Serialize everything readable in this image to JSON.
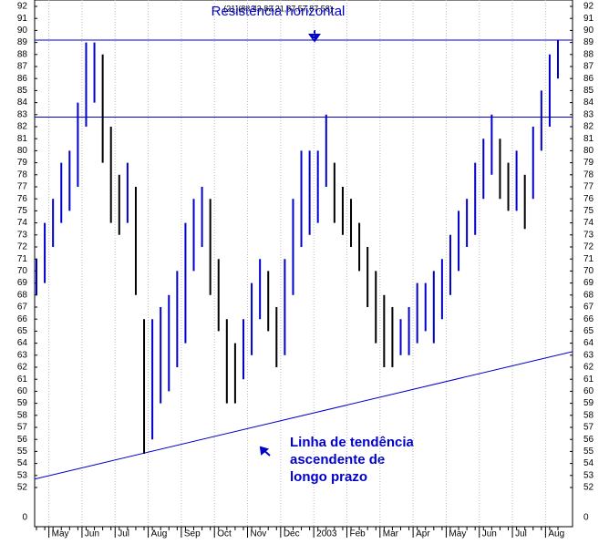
{
  "chart_data": {
    "type": "range_bar",
    "header": "(21)(83.43,83.21,87.57,87.58)",
    "annotations": {
      "resistance": "Resistência horizontal",
      "trend": [
        "Linha de tendência",
        "ascendente de",
        "longo prazo"
      ]
    },
    "categories": [
      null,
      null,
      "May",
      null,
      null,
      null,
      "Jun",
      null,
      null,
      null,
      "Jul",
      null,
      null,
      null,
      "Aug",
      null,
      null,
      null,
      "Sep",
      null,
      null,
      null,
      "Oct",
      null,
      null,
      null,
      "Nov",
      null,
      null,
      null,
      "Dec",
      null,
      null,
      null,
      "2003",
      null,
      null,
      null,
      "Feb",
      null,
      null,
      null,
      "Mar",
      null,
      null,
      null,
      "Apr",
      null,
      null,
      null,
      "May",
      null,
      null,
      null,
      "Jun",
      null,
      null,
      null,
      "Jul",
      null,
      null,
      null,
      "Aug",
      null
    ],
    "high": [
      71,
      74,
      76,
      79,
      80,
      84,
      89,
      89,
      88,
      82,
      78,
      79,
      77,
      66,
      66,
      67,
      68,
      70,
      74,
      76,
      77,
      76,
      71,
      66,
      64,
      66,
      69,
      71,
      70,
      67,
      71,
      76,
      80,
      80,
      80,
      83,
      79,
      77,
      76,
      74,
      72,
      70,
      68,
      67,
      66,
      67,
      69,
      69,
      70,
      71,
      73,
      75,
      76,
      79,
      81,
      83,
      81,
      79,
      80,
      78,
      82,
      85,
      88,
      89.2
    ],
    "low": [
      68,
      69,
      72,
      74,
      75,
      77,
      82,
      84,
      79,
      74,
      73,
      74,
      68,
      54.8,
      56,
      59,
      60,
      62,
      64,
      70,
      72,
      68,
      65,
      59,
      59,
      61,
      63,
      66,
      65,
      62,
      63,
      68,
      72,
      73,
      74,
      77,
      74,
      73,
      72,
      70,
      67,
      64,
      62,
      62,
      63,
      63,
      64,
      65,
      64,
      66,
      68,
      70,
      72,
      73,
      76,
      78,
      76,
      75,
      75,
      73.5,
      76,
      80,
      82,
      86
    ],
    "up_color": "#0000cc",
    "down_color": "#000000",
    "resistance_levels": [
      89.2,
      82.8
    ],
    "trendline": [
      52.7,
      63.3
    ],
    "line_color": "#0000cc",
    "ylim": [
      52,
      92
    ],
    "yticks": [
      52,
      53,
      54,
      55,
      56,
      57,
      58,
      59,
      60,
      61,
      62,
      63,
      64,
      65,
      66,
      67,
      68,
      69,
      70,
      71,
      72,
      73,
      74,
      75,
      76,
      77,
      78,
      79,
      80,
      81,
      82,
      83,
      84,
      85,
      86,
      87,
      88,
      89,
      90,
      91,
      92
    ],
    "ybreak_tick": 0,
    "grid": true
  }
}
